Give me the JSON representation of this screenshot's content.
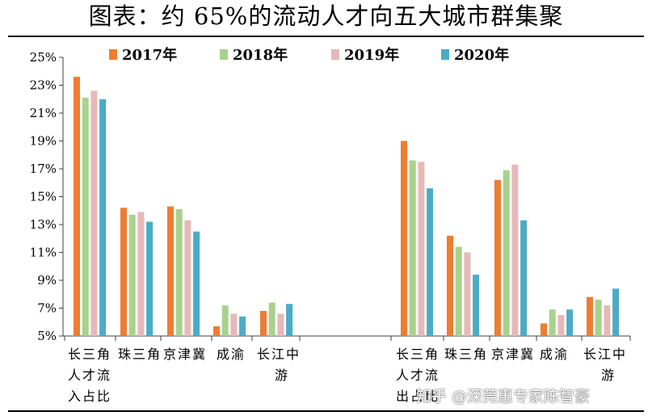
{
  "title": "图表：约 65%的流动人才向五大城市群集聚",
  "watermark": "知乎 @深莞惠专家陈智豪",
  "chart_data": {
    "type": "bar",
    "ylim": [
      5,
      25
    ],
    "yticks": [
      "25%",
      "23%",
      "21%",
      "19%",
      "17%",
      "15%",
      "13%",
      "11%",
      "9%",
      "7%",
      "5%"
    ],
    "ytick_values": [
      25,
      23,
      21,
      19,
      17,
      15,
      13,
      11,
      9,
      7,
      5
    ],
    "legend_position": "top",
    "grid": false,
    "groups": [
      {
        "label_lines": [
          "人才流",
          "入占比"
        ],
        "categories": [
          "长三角",
          "珠三角",
          "京津冀",
          "成渝",
          "长江中游"
        ],
        "series_values": [
          [
            23.6,
            14.2,
            14.3,
            5.7,
            6.8
          ],
          [
            22.1,
            13.7,
            14.1,
            7.2,
            7.4
          ],
          [
            22.6,
            13.9,
            13.3,
            6.6,
            6.6
          ],
          [
            22.0,
            13.2,
            12.5,
            6.4,
            7.3
          ]
        ]
      },
      {
        "label_lines": [
          "人才流",
          "出占比"
        ],
        "categories": [
          "长三角",
          "珠三角",
          "京津冀",
          "成渝",
          "长江中游"
        ],
        "series_values": [
          [
            19.0,
            12.2,
            16.2,
            5.9,
            7.8
          ],
          [
            17.6,
            11.4,
            16.9,
            6.9,
            7.6
          ],
          [
            17.5,
            11.0,
            17.3,
            6.5,
            7.2
          ],
          [
            15.6,
            9.4,
            13.3,
            6.9,
            8.4
          ]
        ]
      }
    ],
    "series": [
      {
        "name": "2017年",
        "color": "#ED7D31"
      },
      {
        "name": "2018年",
        "color": "#A9D18E"
      },
      {
        "name": "2019年",
        "color": "#E6B9B8"
      },
      {
        "name": "2020年",
        "color": "#4BACC6"
      }
    ]
  }
}
